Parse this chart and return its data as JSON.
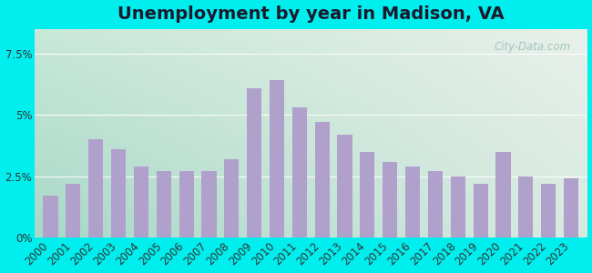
{
  "title": "Unemployment by year in Madison, VA",
  "years": [
    2000,
    2001,
    2002,
    2003,
    2004,
    2005,
    2006,
    2007,
    2008,
    2009,
    2010,
    2011,
    2012,
    2013,
    2014,
    2015,
    2016,
    2017,
    2018,
    2019,
    2020,
    2021,
    2022,
    2023
  ],
  "values": [
    1.7,
    2.2,
    4.0,
    3.6,
    2.9,
    2.7,
    2.7,
    2.7,
    3.2,
    6.1,
    6.4,
    5.3,
    4.7,
    4.2,
    3.5,
    3.1,
    2.9,
    2.7,
    2.5,
    2.2,
    3.5,
    2.5,
    2.2,
    2.4
  ],
  "bar_color": "#b0a0cc",
  "yticks": [
    0,
    2.5,
    5.0,
    7.5
  ],
  "ytick_labels": [
    "0%",
    "2.5%",
    "5%",
    "7.5%"
  ],
  "ylim": [
    0,
    8.5
  ],
  "title_fontsize": 14,
  "tick_fontsize": 8.5,
  "bg_outer": "#00eeee",
  "watermark": "City-Data.com",
  "gradient_top_left": "#c8e8d8",
  "gradient_top_right": "#e8f0ea",
  "gradient_bottom_left": "#a8d8c8",
  "gradient_bottom_right": "#d8eae0"
}
